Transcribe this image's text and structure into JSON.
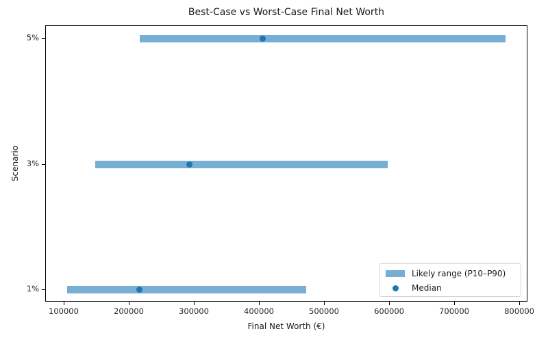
{
  "chart_data": {
    "type": "range",
    "title": "Best-Case vs Worst-Case Final Net Worth",
    "xlabel": "Final Net Worth (€)",
    "ylabel": "Scenario",
    "categories": [
      "1%",
      "3%",
      "5%"
    ],
    "series": [
      {
        "name": "Likely range (P10–P90)",
        "low": [
          105000,
          148000,
          217000
        ],
        "high": [
          473000,
          598000,
          779000
        ],
        "color": "#77aed3"
      },
      {
        "name": "Median",
        "values": [
          216000,
          293000,
          406000
        ],
        "color": "#1f77b4"
      }
    ],
    "xlim": [
      71600,
      812600
    ],
    "xticks": [
      100000,
      200000,
      300000,
      400000,
      500000,
      600000,
      700000,
      800000
    ],
    "grid": false,
    "legend_position": "lower right"
  },
  "labels": {
    "title": "Best-Case vs Worst-Case Final Net Worth",
    "xlabel": "Final Net Worth (€)",
    "ylabel": "Scenario",
    "legend_range": "Likely range (P10–P90)",
    "legend_median": "Median"
  }
}
